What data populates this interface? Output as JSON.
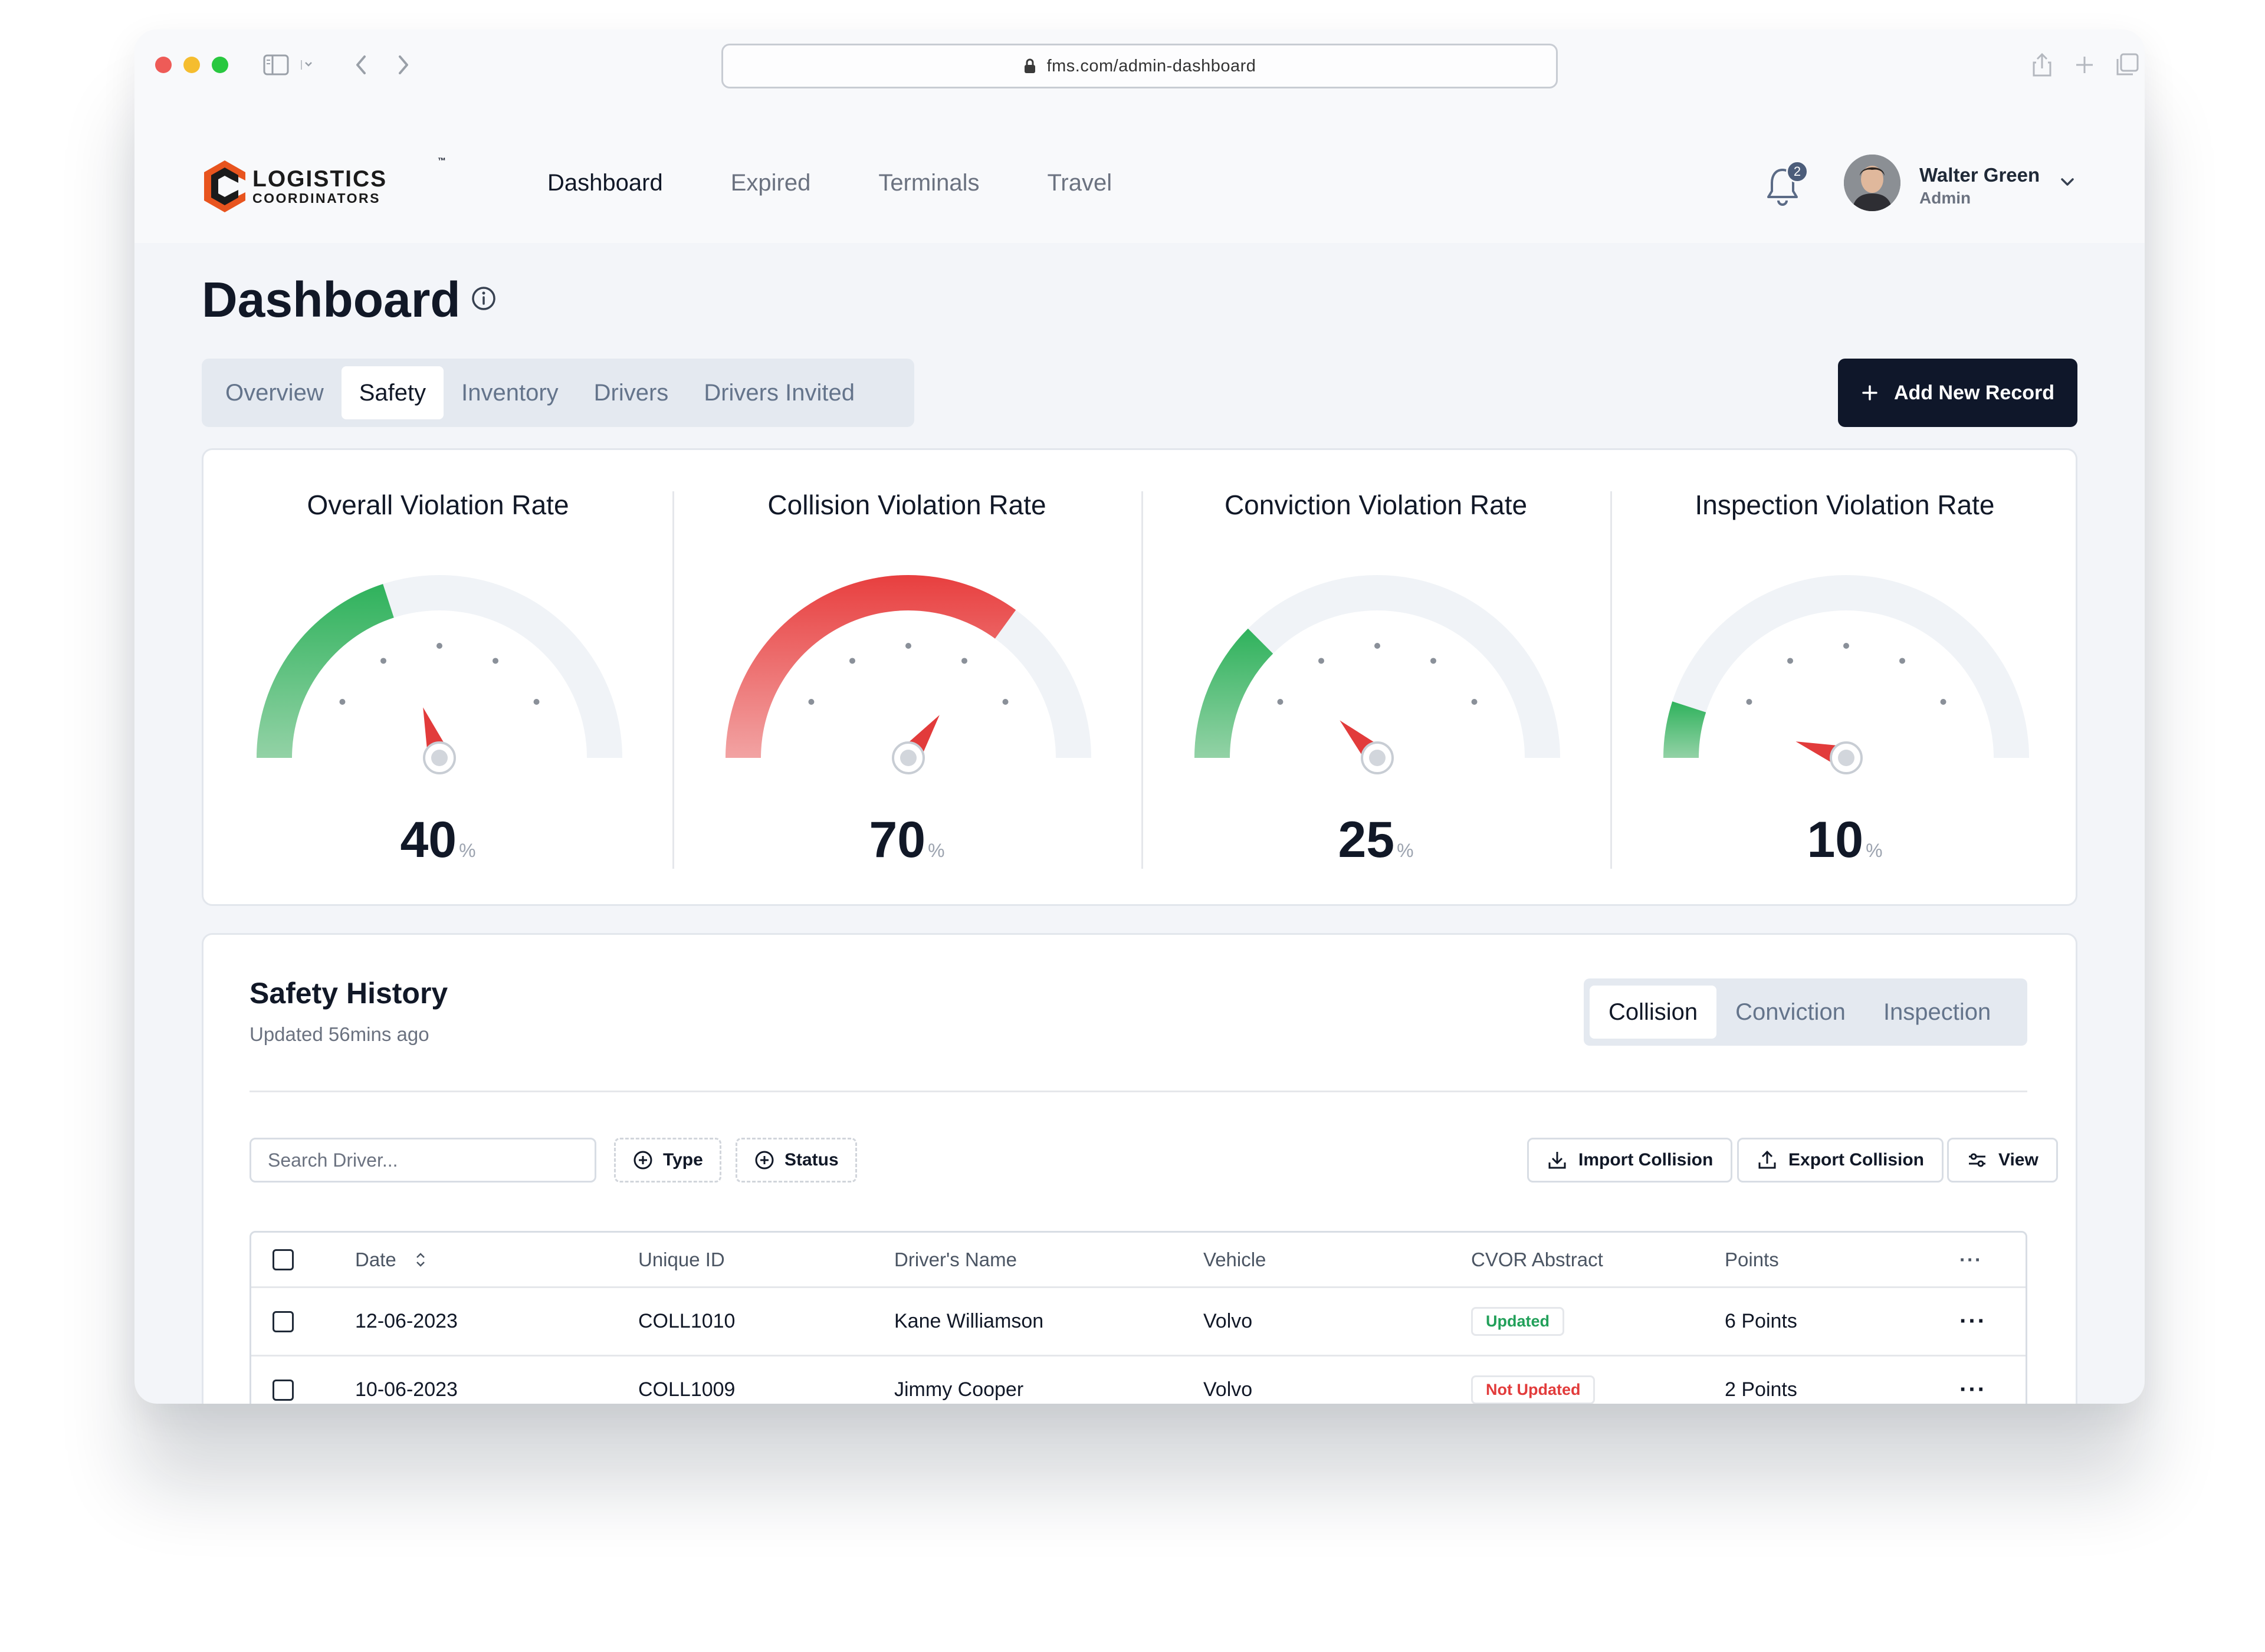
{
  "browser": {
    "url": "fms.com/admin-dashboard",
    "colors": {
      "close": "#ee5b57",
      "minimize": "#f5bd2f",
      "zoom": "#29c840"
    }
  },
  "brand": {
    "line1": "LOGISTICS",
    "line2": "COORDINATORS",
    "tm": "™",
    "accent": "#e8541e"
  },
  "nav": {
    "items": [
      {
        "label": "Dashboard",
        "active": true
      },
      {
        "label": "Expired",
        "active": false
      },
      {
        "label": "Terminals",
        "active": false
      },
      {
        "label": "Travel",
        "active": false
      }
    ]
  },
  "notifications": {
    "count": "2"
  },
  "user": {
    "name": "Walter Green",
    "role": "Admin"
  },
  "page": {
    "title": "Dashboard"
  },
  "tabs": {
    "items": [
      {
        "label": "Overview",
        "active": false
      },
      {
        "label": "Safety",
        "active": true
      },
      {
        "label": "Inventory",
        "active": false
      },
      {
        "label": "Drivers",
        "active": false
      },
      {
        "label": "Drivers Invited",
        "active": false
      }
    ]
  },
  "actions": {
    "add_new": "Add New Record"
  },
  "gauges": [
    {
      "title": "Overall Violation Rate",
      "value": 40,
      "unit": "%",
      "color": "green"
    },
    {
      "title": "Collision Violation Rate",
      "value": 70,
      "unit": "%",
      "color": "red"
    },
    {
      "title": "Conviction Violation Rate",
      "value": 25,
      "unit": "%",
      "color": "green"
    },
    {
      "title": "Inspection Violation Rate",
      "value": 10,
      "unit": "%",
      "color": "green"
    }
  ],
  "history": {
    "title": "Safety History",
    "subtitle": "Updated 56mins ago",
    "segments": [
      {
        "label": "Collision",
        "active": true
      },
      {
        "label": "Conviction",
        "active": false
      },
      {
        "label": "Inspection",
        "active": false
      }
    ],
    "search_placeholder": "Search Driver...",
    "filter_type": "Type",
    "filter_status": "Status",
    "import_label": "Import Collision",
    "export_label": "Export Collision",
    "view_label": "View",
    "columns": [
      "Date",
      "Unique ID",
      "Driver's Name",
      "Vehicle",
      "CVOR Abstract",
      "Points"
    ],
    "rows": [
      {
        "date": "12-06-2023",
        "id": "COLL1010",
        "driver": "Kane Williamson",
        "vehicle": "Volvo",
        "cvor": "Updated",
        "points": "6 Points"
      },
      {
        "date": "10-06-2023",
        "id": "COLL1009",
        "driver": "Jimmy Cooper",
        "vehicle": "Volvo",
        "cvor": "Not Updated",
        "points": "2 Points"
      }
    ]
  }
}
